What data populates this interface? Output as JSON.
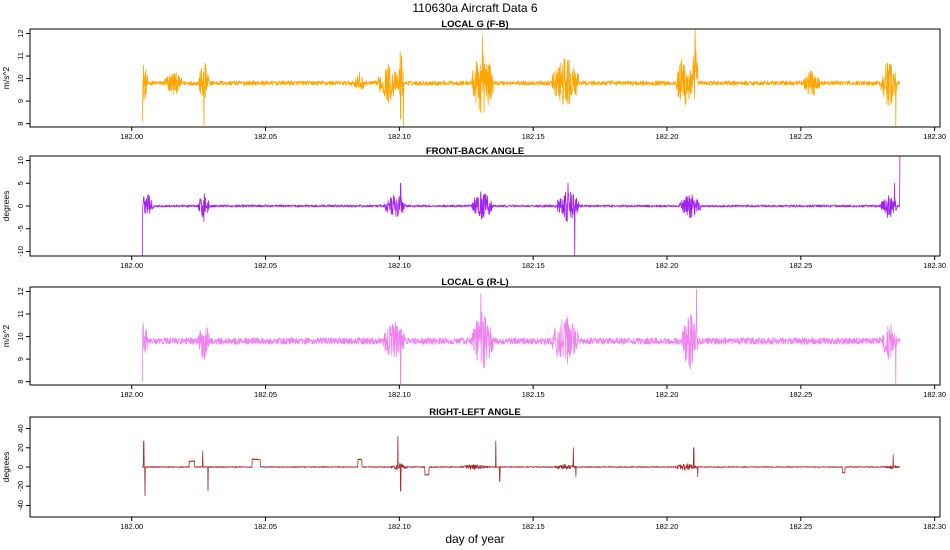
{
  "figure": {
    "title": "110630a    Aircraft Data 6",
    "xlabel": "day of year"
  },
  "chart_data": [
    {
      "type": "line",
      "title": "LOCAL G (F-B)",
      "xlabel": "",
      "ylabel": "m/s^2",
      "color": "#FFA500",
      "xlim": [
        181.962,
        182.302
      ],
      "ylim": [
        7.85,
        12.2
      ],
      "xticks": [
        "182.00",
        "182.05",
        "182.10",
        "182.15",
        "182.20",
        "182.25",
        "182.30"
      ],
      "yticks": [
        "8",
        "9",
        "10",
        "11",
        "12"
      ],
      "series": [
        {
          "name": "LOCAL G (F-B)",
          "data_range": [
            182.004,
            182.287
          ],
          "baseline": 9.8,
          "noise_amplitude": 0.1,
          "bursts": [
            [
              182.0045,
              0.0015,
              1.0
            ],
            [
              182.0155,
              0.0035,
              0.6
            ],
            [
              182.027,
              0.002,
              1.1
            ],
            [
              182.085,
              0.002,
              0.5
            ],
            [
              182.096,
              0.004,
              0.9
            ],
            [
              182.1005,
              0.001,
              1.8
            ],
            [
              182.131,
              0.004,
              1.6
            ],
            [
              182.162,
              0.005,
              1.3
            ],
            [
              182.2065,
              0.003,
              1.5
            ],
            [
              182.2105,
              0.001,
              2.3
            ],
            [
              182.254,
              0.003,
              0.7
            ],
            [
              182.283,
              0.003,
              1.2
            ]
          ],
          "extremes": [
            [
              182.004,
              8.1
            ],
            [
              182.027,
              7.9
            ],
            [
              182.1015,
              7.85
            ],
            [
              182.131,
              11.9
            ],
            [
              182.2105,
              12.15
            ],
            [
              182.2855,
              7.9
            ]
          ]
        }
      ]
    },
    {
      "type": "line",
      "title": "FRONT-BACK ANGLE",
      "xlabel": "",
      "ylabel": "degrees",
      "color": "#A020F0",
      "xlim": [
        181.962,
        182.302
      ],
      "ylim": [
        -11,
        11
      ],
      "xticks": [
        "182.00",
        "182.05",
        "182.10",
        "182.15",
        "182.20",
        "182.25",
        "182.30"
      ],
      "yticks": [
        "-10",
        "-5",
        "0",
        "5",
        "10"
      ],
      "series": [
        {
          "name": "FRONT-BACK ANGLE",
          "data_range": [
            182.004,
            182.287
          ],
          "baseline": 0,
          "noise_amplitude": 0.25,
          "bursts": [
            [
              182.006,
              0.002,
              3.0
            ],
            [
              182.027,
              0.002,
              3.5
            ],
            [
              182.0985,
              0.004,
              3.0
            ],
            [
              182.131,
              0.004,
              3.5
            ],
            [
              182.163,
              0.004,
              4.0
            ],
            [
              182.2085,
              0.004,
              3.0
            ],
            [
              182.283,
              0.003,
              3.0
            ]
          ],
          "extremes": [
            [
              182.004,
              -11
            ],
            [
              182.0045,
              2.0
            ],
            [
              182.1005,
              5.0
            ],
            [
              182.163,
              5.0
            ],
            [
              182.1655,
              -10.8
            ],
            [
              182.285,
              5.0
            ],
            [
              182.287,
              11
            ]
          ]
        }
      ]
    },
    {
      "type": "line",
      "title": "LOCAL G (R-L)",
      "xlabel": "",
      "ylabel": "m/s^2",
      "color": "#EE82EE",
      "xlim": [
        181.962,
        182.302
      ],
      "ylim": [
        7.85,
        12.2
      ],
      "xticks": [
        "182.00",
        "182.05",
        "182.10",
        "182.15",
        "182.20",
        "182.25",
        "182.30"
      ],
      "yticks": [
        "8",
        "9",
        "10",
        "11",
        "12"
      ],
      "series": [
        {
          "name": "LOCAL G (R-L)",
          "data_range": [
            182.004,
            182.287
          ],
          "baseline": 9.8,
          "noise_amplitude": 0.15,
          "bursts": [
            [
              182.0045,
              0.0015,
              1.0
            ],
            [
              182.027,
              0.002,
              1.1
            ],
            [
              182.098,
              0.004,
              1.0
            ],
            [
              182.131,
              0.004,
              1.5
            ],
            [
              182.162,
              0.005,
              1.3
            ],
            [
              182.2085,
              0.003,
              1.4
            ],
            [
              182.283,
              0.003,
              0.9
            ]
          ],
          "extremes": [
            [
              182.004,
              8.0
            ],
            [
              182.1005,
              7.9
            ],
            [
              182.1305,
              11.9
            ],
            [
              182.211,
              12.1
            ],
            [
              182.2855,
              7.9
            ]
          ]
        }
      ]
    },
    {
      "type": "line",
      "title": "RIGHT-LEFT ANGLE",
      "xlabel": "",
      "ylabel": "degrees",
      "color": "#A52A2A",
      "xlim": [
        181.962,
        182.302
      ],
      "ylim": [
        -52,
        52
      ],
      "xticks": [
        "182.00",
        "182.05",
        "182.10",
        "182.15",
        "182.20",
        "182.25",
        "182.30"
      ],
      "yticks": [
        "-40",
        "-20",
        "0",
        "20",
        "40"
      ],
      "series": [
        {
          "name": "RIGHT-LEFT ANGLE",
          "data_range": [
            182.004,
            182.287
          ],
          "baseline": 0,
          "noise_amplitude": 0.5,
          "bursts": [
            [
              182.1,
              0.003,
              4.0
            ],
            [
              182.128,
              0.005,
              3.0
            ],
            [
              182.162,
              0.004,
              3.0
            ],
            [
              182.207,
              0.004,
              4.0
            ],
            [
              182.284,
              0.003,
              2.0
            ]
          ],
          "steps": [
            [
              182.0215,
              182.0235,
              6
            ],
            [
              182.045,
              182.048,
              8
            ],
            [
              182.0845,
              182.086,
              8
            ],
            [
              182.1095,
              182.111,
              -8
            ],
            [
              182.2655,
              182.2665,
              -6
            ]
          ],
          "extremes": [
            [
              182.0045,
              27
            ],
            [
              182.005,
              -30
            ],
            [
              182.0265,
              16
            ],
            [
              182.0285,
              -25
            ],
            [
              182.0995,
              32
            ],
            [
              182.1005,
              -25
            ],
            [
              182.136,
              27
            ],
            [
              182.1375,
              -15
            ],
            [
              182.165,
              20
            ],
            [
              182.166,
              -10
            ],
            [
              182.21,
              20
            ],
            [
              182.2115,
              -10
            ],
            [
              182.2845,
              13
            ]
          ]
        }
      ]
    }
  ]
}
